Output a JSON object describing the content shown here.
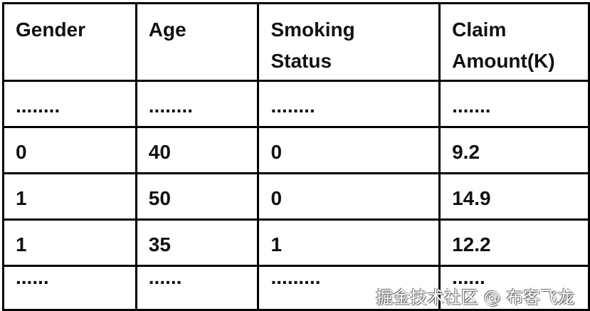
{
  "table": {
    "headers": [
      [
        "Gender"
      ],
      [
        "Age"
      ],
      [
        "Smoking",
        "Status"
      ],
      [
        "Claim",
        "Amount(K)"
      ]
    ],
    "rows": [
      [
        "........",
        "........",
        "........",
        "......."
      ],
      [
        "0",
        "40",
        "0",
        "9.2"
      ],
      [
        "1",
        "50",
        "0",
        "14.9"
      ],
      [
        "1",
        "35",
        "1",
        "12.2"
      ],
      [
        "......",
        "......",
        ".........",
        "......"
      ]
    ]
  },
  "watermark": "掘金技术社区 @ 布客飞龙"
}
